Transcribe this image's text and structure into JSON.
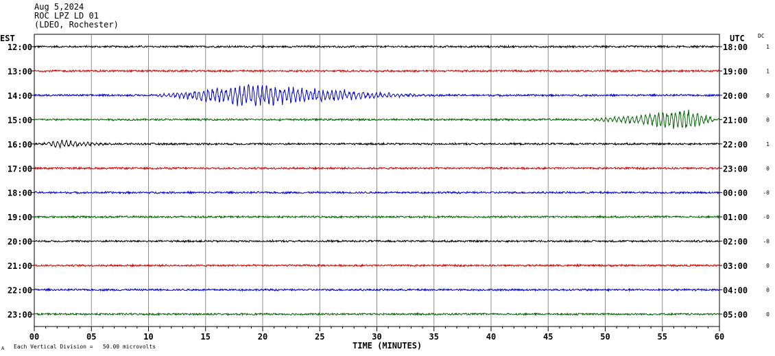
{
  "header": {
    "date": "Aug 5,2024",
    "station": "ROC LPZ LD 01",
    "location": "(LDEO, Rochester)"
  },
  "left_axis_label": "EST",
  "right_axis_label": "UTC",
  "dc_label": "DC",
  "footer": {
    "scale_note": "Each Vertical Division =   50.00 microvolts",
    "corner_mark": "A"
  },
  "chart_data": {
    "type": "line",
    "xlabel": "TIME (MINUTES)",
    "xlim": [
      0,
      60
    ],
    "x_ticks": [
      "00",
      "05",
      "10",
      "15",
      "20",
      "25",
      "30",
      "35",
      "40",
      "45",
      "50",
      "55",
      "60"
    ],
    "grid": true,
    "trace_colors": [
      "#000000",
      "#d40000",
      "#0000cc",
      "#006400"
    ],
    "rows": [
      {
        "est": "12:00",
        "utc": "18:00",
        "dc": "1",
        "color": "#000000"
      },
      {
        "est": "13:00",
        "utc": "19:00",
        "dc": "1",
        "color": "#d40000"
      },
      {
        "est": "14:00",
        "utc": "20:00",
        "dc": "0",
        "color": "#0000cc"
      },
      {
        "est": "15:00",
        "utc": "21:00",
        "dc": "0",
        "color": "#006400"
      },
      {
        "est": "16:00",
        "utc": "22:00",
        "dc": "1",
        "color": "#000000"
      },
      {
        "est": "17:00",
        "utc": "23:00",
        "dc": "0",
        "color": "#d40000"
      },
      {
        "est": "18:00",
        "utc": "00:00",
        "dc": "-0",
        "color": "#0000cc"
      },
      {
        "est": "19:00",
        "utc": "01:00",
        "dc": "-0",
        "color": "#006400"
      },
      {
        "est": "20:00",
        "utc": "02:00",
        "dc": "-0",
        "color": "#000000"
      },
      {
        "est": "21:00",
        "utc": "03:00",
        "dc": "0",
        "color": "#d40000"
      },
      {
        "est": "22:00",
        "utc": "04:00",
        "dc": "0",
        "color": "#0000cc"
      },
      {
        "est": "23:00",
        "utc": "05:00",
        "dc": "0",
        "color": "#006400"
      }
    ],
    "events": [
      {
        "row": 2,
        "start_min": 9,
        "end_min": 36,
        "peak_min": 18,
        "peak_amp": 1.1
      },
      {
        "row": 3,
        "start_min": 47,
        "end_min": 60,
        "peak_min": 57,
        "peak_amp": 1.1
      },
      {
        "row": 4,
        "start_min": 0,
        "end_min": 8,
        "peak_min": 2,
        "peak_amp": 0.35
      }
    ]
  }
}
